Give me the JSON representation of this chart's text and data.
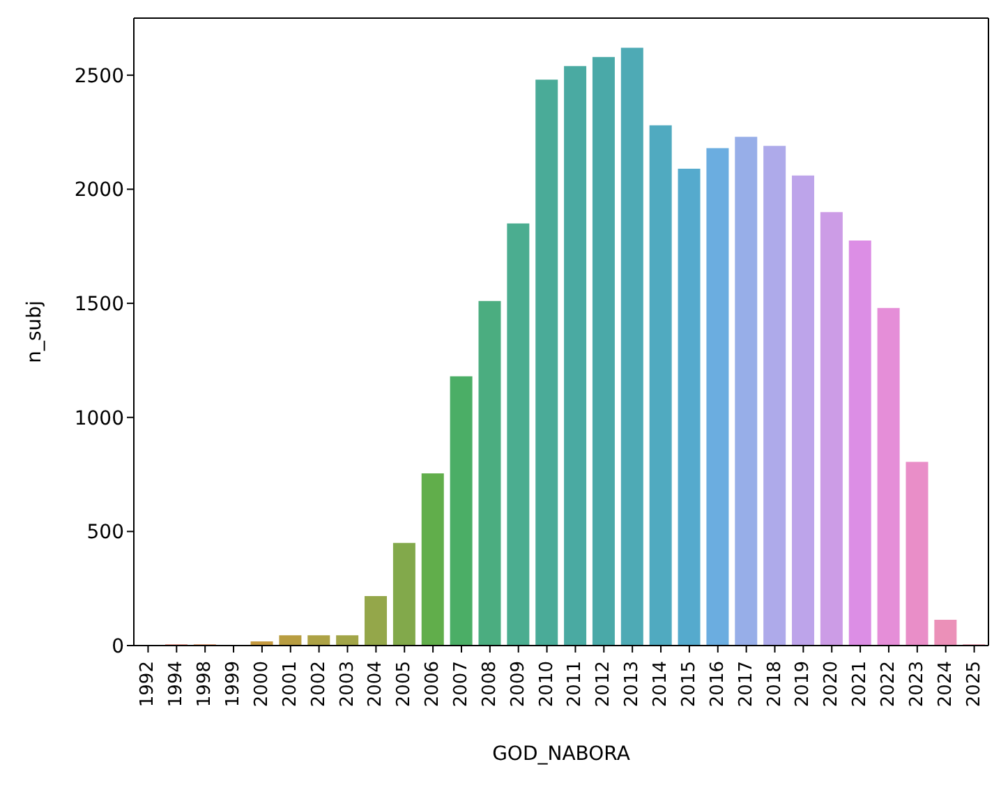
{
  "chart_data": {
    "type": "bar",
    "xlabel": "GOD_NABORA",
    "ylabel": "n_subj",
    "categories": [
      "1992",
      "1994",
      "1998",
      "1999",
      "2000",
      "2001",
      "2002",
      "2003",
      "2004",
      "2005",
      "2006",
      "2007",
      "2008",
      "2009",
      "2010",
      "2011",
      "2012",
      "2013",
      "2014",
      "2015",
      "2016",
      "2017",
      "2018",
      "2019",
      "2020",
      "2021",
      "2022",
      "2023",
      "2024",
      "2025"
    ],
    "values": [
      0,
      5,
      5,
      0,
      18,
      45,
      45,
      45,
      217,
      450,
      755,
      1180,
      1510,
      1850,
      2480,
      2540,
      2580,
      2620,
      2280,
      2090,
      2180,
      2230,
      2190,
      2060,
      1900,
      1775,
      1480,
      805,
      113,
      5
    ],
    "colors": [
      "#f47a80",
      "#ea8070",
      "#e08a5a",
      "#d2924a",
      "#c59a40",
      "#b89d41",
      "#ada245",
      "#a2a548",
      "#94a74a",
      "#82a94b",
      "#61ae4b",
      "#4bae66",
      "#4bad80",
      "#4bad90",
      "#4aab98",
      "#4aaaa2",
      "#4aa9a8",
      "#4eaab5",
      "#50aac0",
      "#55aacd",
      "#6bade0",
      "#97aee8",
      "#aeaaea",
      "#bda4ea",
      "#cc9ce6",
      "#dc8ee5",
      "#e58ed8",
      "#e98ec8",
      "#eb90b8",
      "#ed8ca4"
    ],
    "ylim": [
      0,
      2750
    ],
    "yticks": [
      0,
      500,
      1000,
      1500,
      2000,
      2500
    ],
    "grid": false
  }
}
